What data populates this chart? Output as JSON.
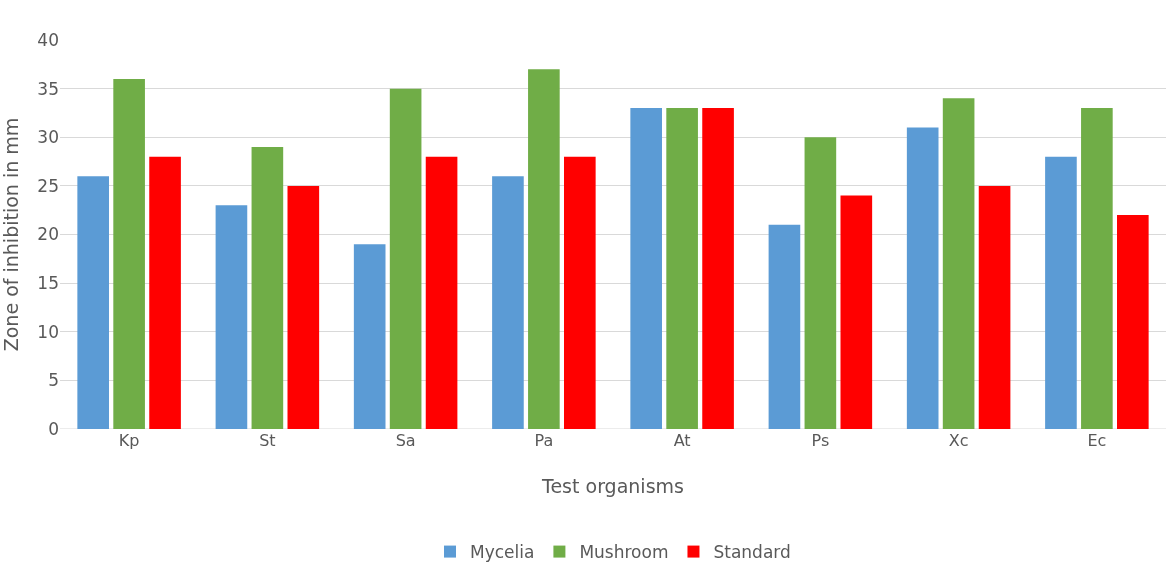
{
  "chart_data": {
    "type": "bar",
    "xlabel": "Test organisms",
    "ylabel": "Zone of inhibition in mm",
    "categories": [
      "Kp",
      "St",
      "Sa",
      "Pa",
      "At",
      "Ps",
      "Xc",
      "Ec"
    ],
    "series": [
      {
        "name": "Mycelia",
        "color": "#5b9bd5",
        "values": [
          26,
          23,
          19,
          26,
          33,
          21,
          31,
          28
        ]
      },
      {
        "name": "Mushroom",
        "color": "#70ad47",
        "values": [
          36,
          29,
          35,
          37,
          33,
          30,
          34,
          33
        ]
      },
      {
        "name": "Standard",
        "color": "#ff0000",
        "values": [
          28,
          25,
          28,
          28,
          33,
          24,
          25,
          22
        ]
      }
    ],
    "ylim": [
      0,
      40
    ],
    "yticks": [
      0,
      5,
      10,
      15,
      20,
      25,
      30,
      35,
      40
    ],
    "grid": "y",
    "legend": "bottom"
  }
}
